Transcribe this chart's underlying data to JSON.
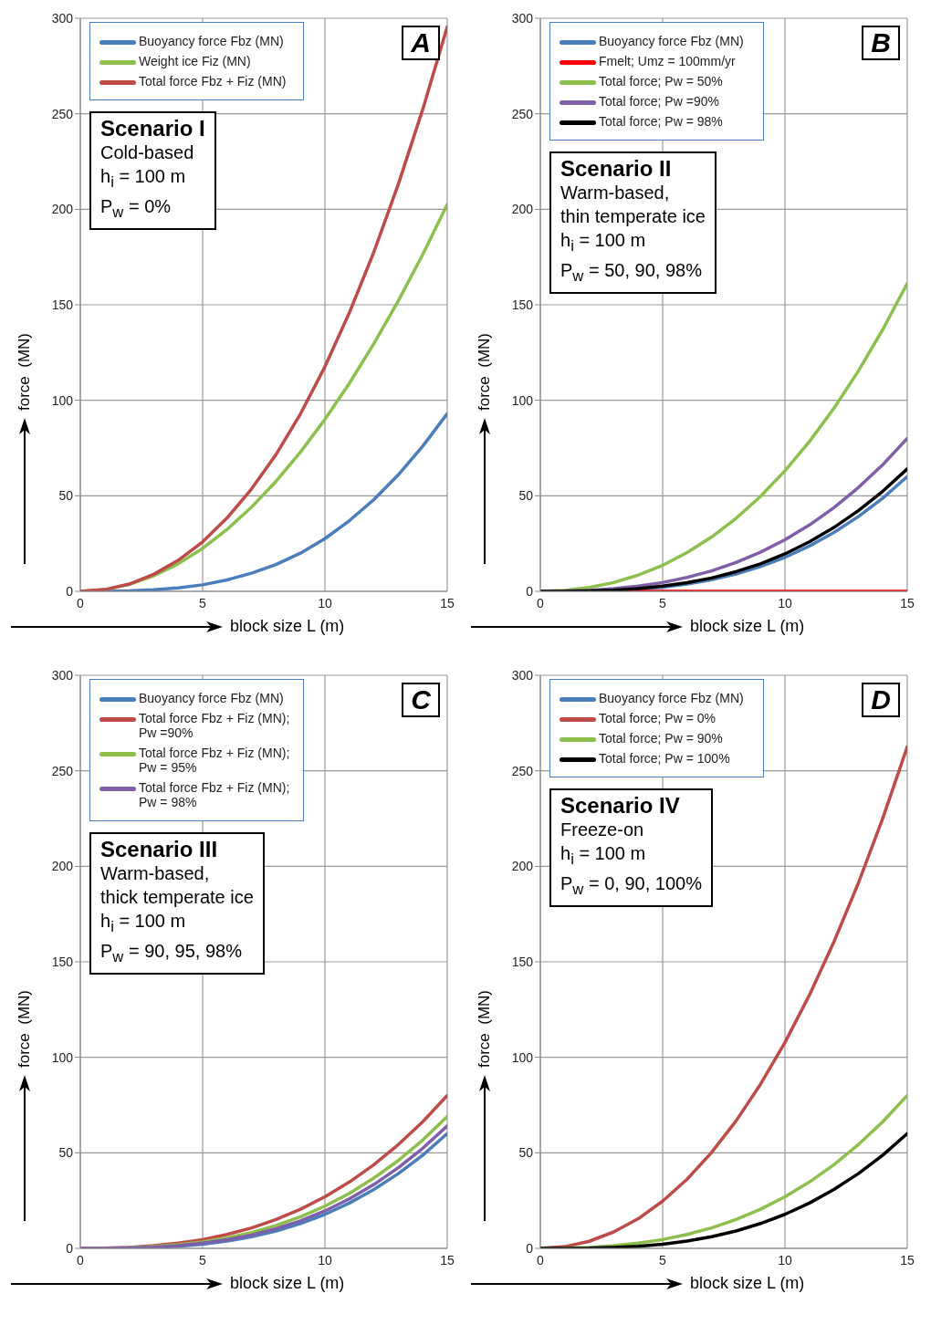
{
  "chart_data": [
    {
      "type": "line",
      "annotations": [
        "A",
        "Scenario I",
        "Cold-based",
        "h$_{i}$ = 100 m",
        "P$_{w}$ = 0%"
      ],
      "xlabel": "block size L (m)",
      "ylabel": "force  (MN)",
      "x": [
        0,
        1,
        2,
        3,
        4,
        5,
        6,
        7,
        8,
        9,
        10,
        11,
        12,
        13,
        14,
        15
      ],
      "xlim": [
        0,
        15
      ],
      "xticks": [
        0,
        5,
        10,
        15
      ],
      "ylim": [
        0,
        300
      ],
      "yticks": [
        0,
        50,
        100,
        150,
        200,
        250,
        300
      ],
      "grid": true,
      "legend": "top left",
      "series": [
        {
          "name": "Buoyancy force Fbz (MN)",
          "color": "#4a7ebb",
          "values": [
            0,
            0,
            0.2,
            0.8,
            1.8,
            3.4,
            6,
            9.5,
            14,
            20,
            27.6,
            37,
            48,
            61,
            76,
            93
          ]
        },
        {
          "name": "Weight ice Fiz (MN)",
          "color": "#8cbf4c",
          "values": [
            0,
            0.9,
            3.6,
            8.1,
            14.4,
            22.5,
            32.4,
            44.1,
            57.6,
            72.9,
            90,
            108.9,
            129.6,
            152.1,
            176.4,
            202.5
          ]
        },
        {
          "name": "Total force Fbz + Fiz (MN)",
          "color": "#be4b48",
          "values": [
            0,
            0.9,
            3.8,
            8.9,
            16.2,
            25.9,
            38.4,
            53.6,
            71.6,
            92.9,
            117.6,
            145.9,
            177.6,
            213.1,
            252.4,
            295.5
          ]
        }
      ]
    },
    {
      "type": "line",
      "annotations": [
        "B",
        "Scenario II",
        "Warm-based,",
        "thin temperate ice",
        "h$_{i}$ = 100 m",
        "P$_{w}$ = 50, 90, 98%"
      ],
      "xlabel": "block size L (m)",
      "ylabel": "force  (MN)",
      "x": [
        0,
        1,
        2,
        3,
        4,
        5,
        6,
        7,
        8,
        9,
        10,
        11,
        12,
        13,
        14,
        15
      ],
      "xlim": [
        0,
        15
      ],
      "xticks": [
        0,
        5,
        10,
        15
      ],
      "ylim": [
        0,
        300
      ],
      "yticks": [
        0,
        50,
        100,
        150,
        200,
        250,
        300
      ],
      "grid": true,
      "legend": "top left",
      "series": [
        {
          "name": "Buoyancy force Fbz (MN)",
          "color": "#4a7ebb",
          "values": [
            0,
            0,
            0.1,
            0.5,
            1.1,
            2.2,
            3.8,
            6.1,
            9.1,
            13,
            17.8,
            23.7,
            30.8,
            39.1,
            48.8,
            60.1
          ]
        },
        {
          "name": "Fmelt; Umz = 100mm/yr",
          "color": "#ff0000",
          "values": [
            null,
            null,
            null,
            0,
            0,
            0,
            0,
            0,
            0,
            0,
            0,
            0,
            0,
            0,
            0,
            0
          ]
        },
        {
          "name": "Total force; Pw = 50%",
          "color": "#8cbf4c",
          "values": [
            0,
            0.5,
            2,
            4.6,
            8.5,
            13.6,
            20.3,
            28.4,
            38.2,
            49.7,
            63.1,
            78.4,
            95.8,
            115.3,
            137.1,
            161.2
          ]
        },
        {
          "name": "Total force; Pw =90%",
          "color": "#7f60a8",
          "values": [
            0,
            0.1,
            0.5,
            1.4,
            2.7,
            4.6,
            7.3,
            10.7,
            15.1,
            20.5,
            27,
            34.7,
            43.8,
            54.3,
            66.3,
            80
          ]
        },
        {
          "name": "Total force; Pw = 98%",
          "color": "#000000",
          "values": [
            0,
            0,
            0.2,
            0.6,
            1.4,
            2.7,
            4.5,
            7,
            10.3,
            14.4,
            19.6,
            25.9,
            33.4,
            42.2,
            52.4,
            64.1
          ]
        }
      ]
    },
    {
      "type": "line",
      "annotations": [
        "C",
        "Scenario III",
        "Warm-based,",
        "thick temperate ice",
        "h$_{i}$ = 100 m",
        "P$_{w}$ = 90, 95, 98%"
      ],
      "xlabel": "block size L (m)",
      "ylabel": "force  (MN)",
      "x": [
        0,
        1,
        2,
        3,
        4,
        5,
        6,
        7,
        8,
        9,
        10,
        11,
        12,
        13,
        14,
        15
      ],
      "xlim": [
        0,
        15
      ],
      "xticks": [
        0,
        5,
        10,
        15
      ],
      "ylim": [
        0,
        300
      ],
      "yticks": [
        0,
        50,
        100,
        150,
        200,
        250,
        300
      ],
      "grid": true,
      "legend": "top left",
      "series": [
        {
          "name": "Buoyancy force Fbz (MN)",
          "color": "#4a7ebb",
          "values": [
            null,
            null,
            null,
            0.5,
            1.1,
            2.2,
            3.8,
            6.1,
            9.1,
            13,
            17.8,
            23.7,
            30.8,
            39.1,
            48.8,
            60.1
          ]
        },
        {
          "name": "Total force Fbz + Fiz (MN); Pw =90%",
          "color": "#be4b48",
          "values": [
            0,
            0.1,
            0.5,
            1.4,
            2.7,
            4.6,
            7.3,
            10.7,
            15.1,
            20.5,
            27,
            34.7,
            43.8,
            54.3,
            66.3,
            80
          ]
        },
        {
          "name": "Total force Fbz + Fiz (MN); Pw = 95%",
          "color": "#8cbf4c",
          "values": [
            null,
            null,
            0.3,
            0.9,
            1.9,
            3.4,
            5.5,
            8.3,
            12,
            16.5,
            22.1,
            28.8,
            36.8,
            46,
            56.7,
            69
          ]
        },
        {
          "name": "Total force Fbz + Fiz (MN); Pw = 98%",
          "color": "#7f60a8",
          "values": [
            0,
            0,
            0.2,
            0.6,
            1.4,
            2.7,
            4.5,
            7,
            10.3,
            14.4,
            19.6,
            25.9,
            33.4,
            42.2,
            52.4,
            64.1
          ]
        }
      ]
    },
    {
      "type": "line",
      "annotations": [
        "D",
        "Scenario IV",
        "Freeze-on",
        "h$_{i}$ = 100 m",
        "P$_{w}$ = 0, 90, 100%"
      ],
      "xlabel": "block size L (m)",
      "ylabel": "force  (MN)",
      "x": [
        0,
        1,
        2,
        3,
        4,
        5,
        6,
        7,
        8,
        9,
        10,
        11,
        12,
        13,
        14,
        15
      ],
      "xlim": [
        0,
        15
      ],
      "xticks": [
        0,
        5,
        10,
        15
      ],
      "ylim": [
        0,
        300
      ],
      "yticks": [
        0,
        50,
        100,
        150,
        200,
        250,
        300
      ],
      "grid": true,
      "legend": "top left",
      "series": [
        {
          "name": "Buoyancy force Fbz (MN)",
          "color": "#4a7ebb",
          "values": [
            null,
            null,
            null,
            null,
            null,
            null,
            null,
            null,
            null,
            null,
            null,
            null,
            null,
            null,
            null,
            null
          ]
        },
        {
          "name": "Total force; Pw = 0%",
          "color": "#be4b48",
          "values": [
            0,
            0.9,
            3.7,
            8.6,
            15.5,
            24.7,
            36.2,
            50.2,
            66.7,
            85.9,
            107.8,
            132.6,
            160.4,
            191.2,
            225.2,
            262.6
          ]
        },
        {
          "name": "Total force; Pw = 90%",
          "color": "#8cbf4c",
          "values": [
            0,
            0.1,
            0.5,
            1.4,
            2.7,
            4.6,
            7.3,
            10.7,
            15.1,
            20.5,
            27,
            34.7,
            43.8,
            54.3,
            66.3,
            80
          ]
        },
        {
          "name": "Total force; Pw = 100%",
          "color": "#000000",
          "values": [
            0,
            0,
            0.1,
            0.5,
            1.1,
            2.2,
            3.8,
            6.1,
            9.1,
            13,
            17.8,
            23.7,
            30.8,
            39.1,
            48.8,
            60.1
          ]
        }
      ]
    }
  ]
}
